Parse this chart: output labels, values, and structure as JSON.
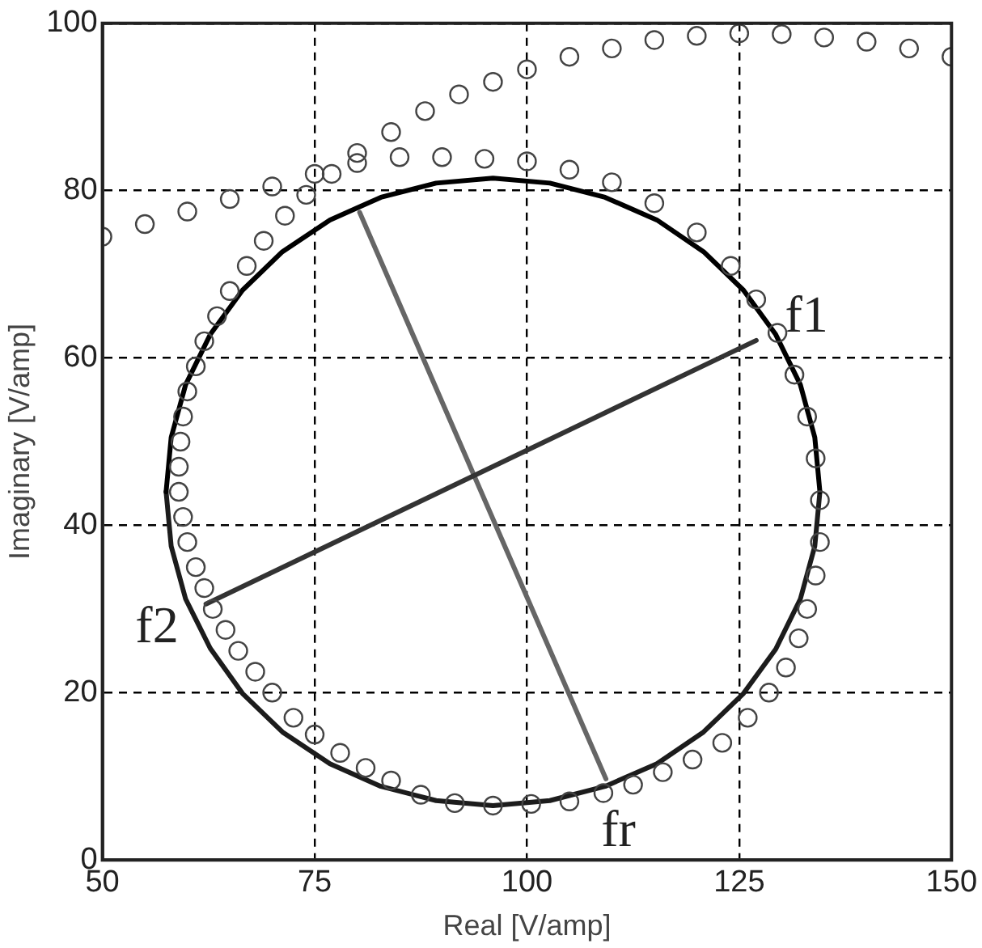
{
  "chart_data": {
    "type": "scatter",
    "xlabel": "Real [V/amp]",
    "ylabel": "Imaginary [V/amp]",
    "xlim": [
      50,
      150
    ],
    "xticks": [
      50,
      75,
      100,
      125,
      150
    ],
    "ylim": [
      0,
      100
    ],
    "yticks": [
      0,
      20,
      40,
      60,
      80,
      100
    ],
    "grid": true,
    "series": [
      {
        "type": "scatter",
        "marker": "circle",
        "color": "#444444",
        "x": [
          50,
          55,
          60,
          65,
          70,
          75,
          80,
          85,
          90,
          95,
          100,
          105,
          110,
          115,
          120,
          124,
          127,
          129.5,
          131.5,
          133,
          134,
          134.5,
          134.5,
          134,
          133,
          132,
          130.5,
          128.5,
          126,
          123,
          119.5,
          116,
          112.5,
          109,
          105,
          100.5,
          96,
          91.5,
          87.5,
          84,
          81,
          78,
          75,
          72.5,
          70,
          68,
          66,
          64.5,
          63,
          62,
          61,
          60,
          59.5,
          59,
          59,
          59.2,
          59.5,
          60,
          61,
          62,
          63.5,
          65,
          67,
          69,
          71.5,
          74,
          77,
          80,
          84,
          88,
          92,
          96,
          100,
          105,
          110,
          115,
          120,
          125,
          130,
          135,
          140,
          145,
          150
        ],
        "values": [
          74.5,
          76,
          77.5,
          79,
          80.5,
          82,
          83.3,
          84,
          84,
          83.8,
          83.5,
          82.5,
          81,
          78.5,
          75,
          71,
          67,
          63,
          58,
          53,
          48,
          43,
          38,
          34,
          30,
          26.5,
          23,
          20,
          17,
          14,
          12,
          10.5,
          9,
          8,
          7,
          6.7,
          6.5,
          6.8,
          7.8,
          9.5,
          11,
          12.8,
          15,
          17,
          20,
          22.5,
          25,
          27.5,
          30,
          32.5,
          35,
          38,
          41,
          44,
          47,
          50,
          53,
          56,
          59,
          62,
          65,
          68,
          71,
          74,
          77,
          79.5,
          82,
          84.5,
          87,
          89.5,
          91.5,
          93,
          94.5,
          96,
          97,
          98,
          98.5,
          98.8,
          98.7,
          98.3,
          97.8,
          97,
          96
        ]
      },
      {
        "type": "line",
        "marker": "none",
        "line_style": "solid",
        "color": "#000000",
        "x": [
          57.5,
          58.1,
          59.8,
          62.7,
          66.5,
          71.2,
          76.8,
          82.8,
          89.3,
          96,
          102.7,
          109.2,
          115.3,
          120.8,
          125.5,
          129.3,
          132.2,
          133.9,
          134.5
        ],
        "values": [
          44,
          50.5,
          56.8,
          62.8,
          68.1,
          72.7,
          76.5,
          79.2,
          80.9,
          81.5,
          80.9,
          79.2,
          76.5,
          72.7,
          68.1,
          62.8,
          56.8,
          50.5,
          44
        ]
      },
      {
        "type": "line",
        "marker": "none",
        "line_style": "solid",
        "color": "#1c1c1c",
        "x": [
          57.5,
          58.1,
          59.8,
          62.7,
          66.5,
          71.2,
          76.8,
          82.8,
          89.3,
          96,
          102.7,
          109.2,
          115.3,
          120.8,
          125.5,
          129.3,
          132.2,
          133.9,
          134.5
        ],
        "values": [
          44,
          37.5,
          31.2,
          25.3,
          19.9,
          15.3,
          11.5,
          8.8,
          7.1,
          6.5,
          7.1,
          8.8,
          11.5,
          15.3,
          19.9,
          25.2,
          31.2,
          37.5,
          44
        ]
      },
      {
        "type": "line",
        "marker": "none",
        "line_style": "solid",
        "color": "#333333",
        "x": [
          62.2,
          127
        ],
        "values": [
          30.6,
          62.1
        ]
      },
      {
        "type": "line",
        "marker": "none",
        "line_style": "solid",
        "color": "#666666",
        "x": [
          80.3,
          109.3
        ],
        "values": [
          77.4,
          9.7
        ]
      }
    ],
    "annotations": [
      {
        "text": "f1",
        "x": 127,
        "y": 62.1
      },
      {
        "text": "f2",
        "x": 62.2,
        "y": 30.6
      },
      {
        "text": "fr",
        "x": 109.3,
        "y": 9.7
      }
    ]
  }
}
